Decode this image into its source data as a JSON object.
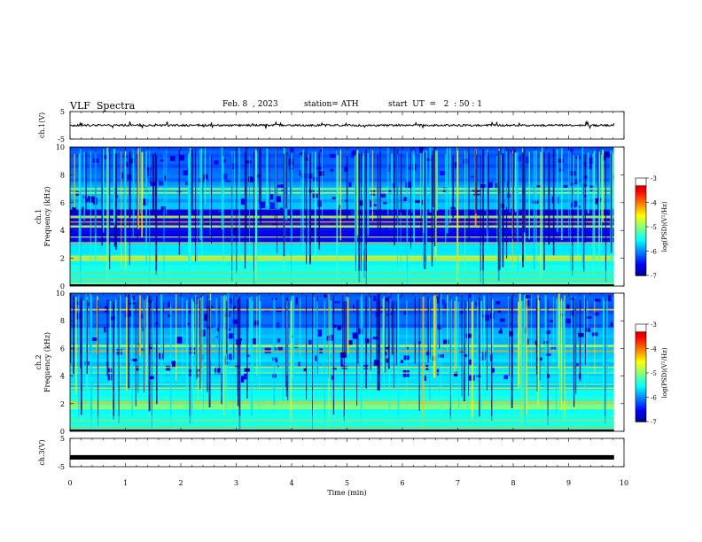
{
  "header": {
    "title": "VLF  Spectra",
    "date": "Feb. 8  , 2023",
    "station": "station= ATH",
    "start": "start  UT  =   2  : 50 : 1"
  },
  "chart_data": [
    {
      "type": "line",
      "name": "ch1-waveform",
      "ylabel": "ch.1(V)",
      "ylim": [
        -5,
        5
      ],
      "yticks": [
        "5",
        "-5"
      ],
      "xlim": [
        0,
        10
      ],
      "baseline": 0,
      "noise_amplitude": 0.6,
      "x_end": 9.82,
      "color": "#000000"
    },
    {
      "type": "heatmap",
      "name": "ch1-spectrogram",
      "ylabel": "ch.1\nFrequency  (kHz)",
      "ylim": [
        0,
        10
      ],
      "yticks": [
        "0",
        "2",
        "4",
        "6",
        "8",
        "10"
      ],
      "xlim": [
        0,
        10
      ],
      "x_end": 9.82,
      "colorbar": {
        "label": "log(PSD)(V²/Hz)",
        "ticks": [
          "-3",
          "-4",
          "-5",
          "-6",
          "-7"
        ],
        "range": [
          -7,
          -3
        ]
      },
      "intense_bands_khz": [
        0.2,
        0.5,
        0.9,
        1.9,
        2.1,
        3.1,
        3.5,
        4.3,
        4.6,
        5.0,
        6.7,
        7.0
      ]
    },
    {
      "type": "heatmap",
      "name": "ch2-spectrogram",
      "ylabel": "ch.2\nFrequency  (kHz)",
      "ylim": [
        0,
        10
      ],
      "yticks": [
        "0",
        "2",
        "4",
        "6",
        "8",
        "10"
      ],
      "xlim": [
        0,
        10
      ],
      "x_end": 9.82,
      "colorbar": {
        "label": "log(PSD)(V²/Hz)",
        "ticks": [
          "-3",
          "-4",
          "-5",
          "-6",
          "-7"
        ],
        "range": [
          -7,
          -3
        ]
      },
      "intense_bands_khz": [
        0.3,
        0.8,
        1.7,
        1.9,
        2.1,
        3.1,
        3.4,
        4.2,
        4.6,
        5.8,
        6.2,
        8.8
      ]
    },
    {
      "type": "line",
      "name": "ch3-level",
      "ylabel": "ch.3(V)",
      "ylim": [
        -5,
        5
      ],
      "yticks": [
        "5",
        "-5"
      ],
      "xlim": [
        0,
        10
      ],
      "constant_value": -1.7,
      "x_end": 9.82,
      "color": "#000000",
      "xlabel": "Time  (min)",
      "xticks": [
        "0",
        "1",
        "2",
        "3",
        "4",
        "5",
        "6",
        "7",
        "8",
        "9",
        "10"
      ]
    }
  ]
}
